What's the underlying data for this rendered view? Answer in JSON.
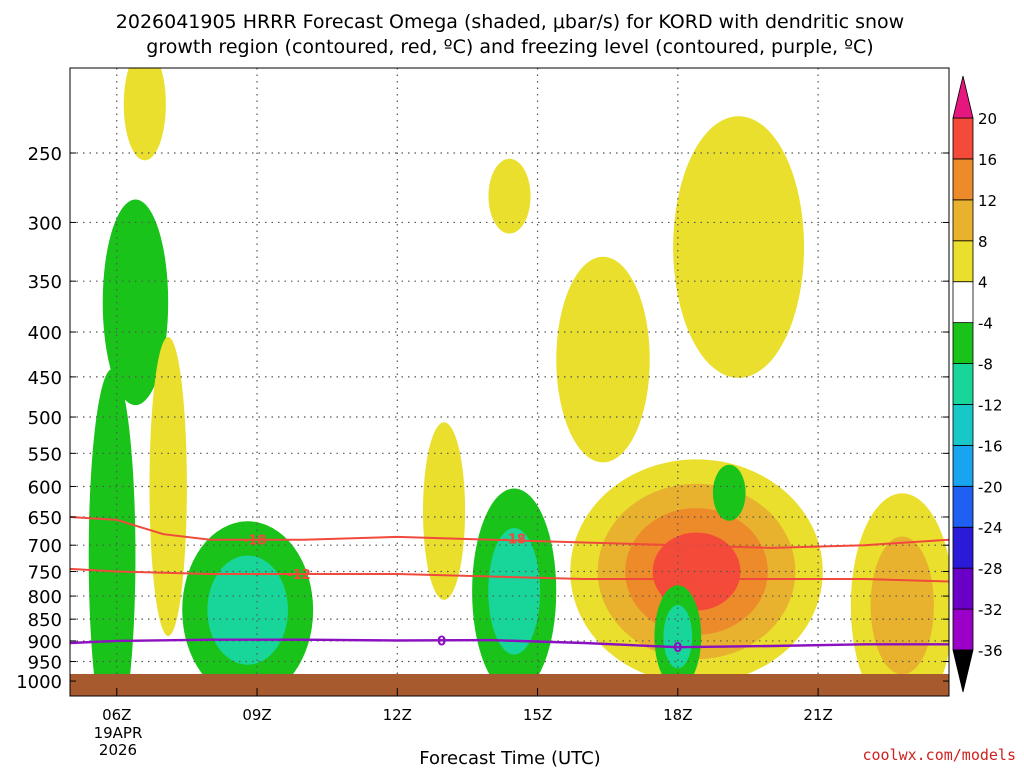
{
  "chart_data": {
    "type": "contour",
    "title_line1": "2026041905 HRRR Forecast Omega (shaded, μbar/s) for KORD with dendritic snow",
    "title_line2": "growth region (contoured, red, ºC) and freezing level (contoured, purple, ºC)",
    "xlabel": "Forecast Time (UTC)",
    "credit": "coolwx.com/models",
    "x_range_hours": [
      5.0,
      23.8
    ],
    "y_range_hpa": [
      200,
      1040
    ],
    "x_ticks": [
      {
        "hour": 6,
        "label": "06Z"
      },
      {
        "hour": 9,
        "label": "09Z"
      },
      {
        "hour": 12,
        "label": "12Z"
      },
      {
        "hour": 15,
        "label": "15Z"
      },
      {
        "hour": 18,
        "label": "18Z"
      },
      {
        "hour": 21,
        "label": "21Z"
      }
    ],
    "date_line1": "19APR",
    "date_line2": "2026",
    "y_ticks": [
      250,
      300,
      350,
      400,
      450,
      500,
      550,
      600,
      650,
      700,
      750,
      800,
      850,
      900,
      950,
      1000
    ],
    "colorbar": {
      "levels": [
        -36,
        -32,
        -28,
        -24,
        -20,
        -16,
        -12,
        -8,
        -4,
        4,
        8,
        12,
        16,
        20
      ],
      "colors": [
        "#a8a8a8",
        "#9b00c9",
        "#6a00c8",
        "#2b1ad8",
        "#1f5ff2",
        "#18a4ee",
        "#18c8c8",
        "#18d69a",
        "#19c319",
        "#ffffff",
        "#e9df2c",
        "#e8b22f",
        "#ed8a2a",
        "#f44a3a",
        "#e5167e"
      ]
    },
    "omega_features": [
      {
        "name": "updraft-06z-top",
        "hour": 6.6,
        "pressure": 220,
        "value": 6
      },
      {
        "name": "downdraft-06z",
        "hour": 6.4,
        "pressure": 370,
        "value": -6
      },
      {
        "name": "updraft-07z",
        "hour": 7.1,
        "pressure": 600,
        "value": 6
      },
      {
        "name": "downdraft-06z-low",
        "hour": 5.9,
        "pressure": 720,
        "value": -6
      },
      {
        "name": "downdraft-08z",
        "hour": 8.8,
        "pressure": 830,
        "value": -10
      },
      {
        "name": "updraft-13z",
        "hour": 13.0,
        "pressure": 640,
        "value": 8
      },
      {
        "name": "updraft-14z-top",
        "hour": 14.4,
        "pressure": 280,
        "value": 6
      },
      {
        "name": "downdraft-14z",
        "hour": 14.5,
        "pressure": 790,
        "value": -10
      },
      {
        "name": "updraft-16z",
        "hour": 16.4,
        "pressure": 430,
        "value": 6
      },
      {
        "name": "updraft-19z",
        "hour": 19.3,
        "pressure": 320,
        "value": 6
      },
      {
        "name": "updraft-18z-low",
        "hour": 18.4,
        "pressure": 750,
        "value": 18
      },
      {
        "name": "updraft-22z",
        "hour": 22.8,
        "pressure": 820,
        "value": 10
      },
      {
        "name": "downdraft-18z",
        "hour": 18.0,
        "pressure": 890,
        "value": -10
      },
      {
        "name": "downdraft-19z",
        "hour": 19.1,
        "pressure": 610,
        "value": -6
      }
    ],
    "dgz_upper_label": "-18",
    "dgz_lower_label": "-12",
    "freezing_label": "0",
    "dgz_upper_line": [
      [
        5.0,
        650
      ],
      [
        6.0,
        655
      ],
      [
        7.0,
        680
      ],
      [
        8.0,
        690
      ],
      [
        10.0,
        690
      ],
      [
        12.0,
        685
      ],
      [
        14.0,
        690
      ],
      [
        16.0,
        695
      ],
      [
        18.0,
        700
      ],
      [
        20.0,
        705
      ],
      [
        22.0,
        700
      ],
      [
        23.8,
        690
      ]
    ],
    "dgz_lower_line": [
      [
        5.0,
        745
      ],
      [
        6.0,
        750
      ],
      [
        8.0,
        755
      ],
      [
        10.0,
        755
      ],
      [
        12.0,
        755
      ],
      [
        14.0,
        760
      ],
      [
        16.0,
        765
      ],
      [
        18.0,
        765
      ],
      [
        20.0,
        765
      ],
      [
        22.0,
        765
      ],
      [
        23.8,
        770
      ]
    ],
    "freezing_line": [
      [
        5.0,
        905
      ],
      [
        6.0,
        900
      ],
      [
        8.0,
        897
      ],
      [
        10.0,
        897
      ],
      [
        12.0,
        899
      ],
      [
        14.0,
        898
      ],
      [
        16.0,
        905
      ],
      [
        18.0,
        915
      ],
      [
        20.0,
        912
      ],
      [
        22.0,
        908
      ],
      [
        23.8,
        908
      ]
    ]
  }
}
